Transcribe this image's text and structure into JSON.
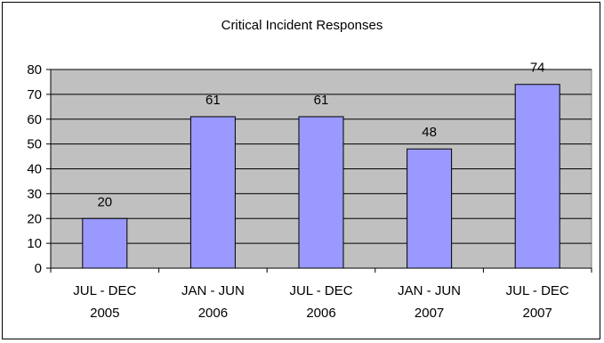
{
  "chart_data": {
    "type": "bar",
    "title": "Critical Incident Responses",
    "categories": [
      [
        "JUL - DEC",
        "2005"
      ],
      [
        "JAN - JUN",
        "2006"
      ],
      [
        "JUL - DEC",
        "2006"
      ],
      [
        "JAN - JUN",
        "2007"
      ],
      [
        "JUL - DEC",
        "2007"
      ]
    ],
    "values": [
      20,
      61,
      61,
      48,
      74
    ],
    "data_labels": [
      "20",
      "61",
      "61",
      "48",
      "74"
    ],
    "ylim": [
      0,
      80
    ],
    "yticks": [
      0,
      10,
      20,
      30,
      40,
      50,
      60,
      70,
      80
    ],
    "ytick_labels": [
      "0",
      "10",
      "20",
      "30",
      "40",
      "50",
      "60",
      "70",
      "80"
    ],
    "xlabel": "",
    "ylabel": "",
    "grid": true,
    "legend": "none",
    "colors": {
      "plot_background": "#c0c0c0",
      "bar_fill": "#9999ff",
      "bar_stroke": "#000000",
      "grid": "#000000"
    }
  }
}
